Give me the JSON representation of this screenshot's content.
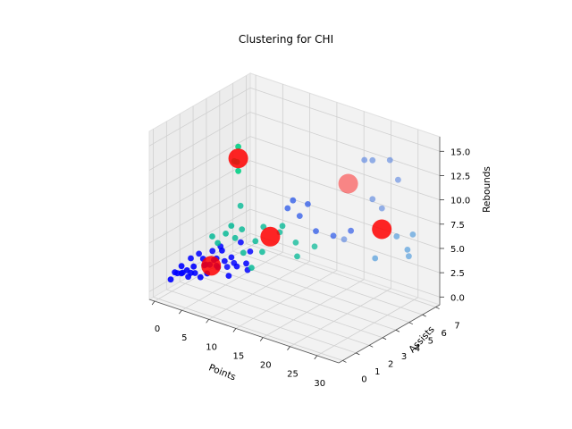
{
  "chart_data": {
    "type": "scatter",
    "projection": "3d",
    "title": "Clustering for CHI",
    "xlabel": "Points",
    "ylabel": "Assists",
    "zlabel": "Rebounds",
    "xlim": [
      -1,
      34
    ],
    "ylim": [
      -0.3,
      7.3
    ],
    "zlim": [
      -0.8,
      16.5
    ],
    "x_ticks": [
      "0",
      "5",
      "10",
      "15",
      "20",
      "25",
      "30"
    ],
    "y_ticks": [
      "0",
      "1",
      "2",
      "3",
      "4",
      "5",
      "6",
      "7"
    ],
    "z_ticks": [
      "0.0",
      "2.5",
      "5.0",
      "7.5",
      "10.0",
      "12.5",
      "15.0"
    ],
    "grid": true,
    "legend": "none",
    "pane_color": "#f2f2f2",
    "grid_color": "#d0d0d0",
    "series": [
      {
        "color": "#0000ff",
        "points": [
          [
            1,
            0.5,
            1
          ],
          [
            1.5,
            0.8,
            1.5
          ],
          [
            2,
            0.4,
            2
          ],
          [
            2,
            1,
            1.5
          ],
          [
            2.5,
            0.7,
            2.5
          ],
          [
            3,
            0.5,
            2
          ],
          [
            3,
            1.2,
            3
          ],
          [
            3.5,
            0.8,
            1.5
          ],
          [
            4,
            0.5,
            2.5
          ],
          [
            4,
            1.4,
            3.5
          ],
          [
            4.5,
            0.9,
            2
          ],
          [
            5,
            0.6,
            3
          ],
          [
            5,
            1.5,
            2.5
          ],
          [
            5.5,
            1.1,
            3.5
          ],
          [
            6,
            0.7,
            2
          ],
          [
            6,
            1.6,
            4
          ],
          [
            6.5,
            1.2,
            3
          ],
          [
            7,
            0.8,
            2.5
          ],
          [
            7,
            1.8,
            4.5
          ],
          [
            7.5,
            1.3,
            3
          ],
          [
            8,
            0.9,
            4
          ],
          [
            8,
            1.9,
            2.5
          ],
          [
            8.5,
            1.5,
            3.5
          ],
          [
            9,
            1.1,
            5
          ],
          [
            9,
            2,
            3
          ],
          [
            9.5,
            1.6,
            4
          ],
          [
            10,
            1.2,
            2.5
          ],
          [
            10.5,
            1.9,
            5.5
          ],
          [
            11,
            1.4,
            3.5
          ],
          [
            11.5,
            2.2,
            4.5
          ],
          [
            12,
            1.8,
            3
          ],
          [
            12.5,
            1.5,
            4
          ],
          [
            6,
            1,
            3
          ],
          [
            7,
            1.5,
            3.5
          ],
          [
            4,
            0.8,
            2
          ],
          [
            8,
            1.2,
            3
          ]
        ]
      },
      {
        "color": "#1f4fe8",
        "points": [
          [
            14,
            4,
            8
          ],
          [
            15,
            4,
            9
          ],
          [
            15,
            4.5,
            7
          ],
          [
            16.5,
            4.5,
            8.5
          ],
          [
            18,
            4.5,
            6
          ],
          [
            20,
            5,
            5.5
          ],
          [
            22,
            5.5,
            6
          ]
        ]
      },
      {
        "color": "#5b86e0",
        "points": [
          [
            21,
            5.4,
            5
          ],
          [
            25,
            5.3,
            14
          ],
          [
            26,
            5.5,
            14
          ],
          [
            26,
            5.5,
            10
          ],
          [
            28,
            6,
            14
          ],
          [
            27,
            5.8,
            9
          ],
          [
            29,
            6.2,
            12
          ]
        ]
      },
      {
        "color": "#3a8fd8",
        "points": [
          [
            25.5,
            5.9,
            3.5
          ],
          [
            28.5,
            6.3,
            6
          ],
          [
            30,
            6.6,
            4
          ],
          [
            31,
            6.5,
            6.5
          ],
          [
            30.5,
            6.3,
            5
          ]
        ]
      },
      {
        "color": "#00b894",
        "points": [
          [
            5,
            2,
            5
          ],
          [
            6,
            2,
            4.5
          ],
          [
            7,
            2.2,
            5.5
          ],
          [
            8,
            2.5,
            5
          ],
          [
            9,
            2.6,
            6
          ],
          [
            10,
            2.3,
            4
          ],
          [
            11,
            2.8,
            5
          ],
          [
            12,
            3,
            6.5
          ],
          [
            13,
            2.5,
            4.5
          ],
          [
            14,
            3.4,
            6
          ],
          [
            15,
            3.2,
            7
          ],
          [
            16,
            3.8,
            5
          ],
          [
            17,
            3.5,
            4
          ],
          [
            18,
            4.4,
            4.5
          ],
          [
            9,
            1.8,
            7
          ],
          [
            12,
            2.1,
            3
          ],
          [
            8,
            2.9,
            8
          ]
        ]
      },
      {
        "color": "#00d084",
        "points": [
          [
            12.5,
            0.9,
            16.5
          ],
          [
            12.5,
            0.8,
            15
          ],
          [
            12.5,
            0.9,
            14
          ],
          [
            12,
            0.8,
            15
          ]
        ]
      },
      {
        "color": "#ff0000",
        "centroid": true,
        "points": [
          [
            12.5,
            0.9,
            15.3
          ],
          [
            13,
            3.1,
            5.6
          ],
          [
            22,
            5.3,
            11
          ],
          [
            26.5,
            6,
            6.6
          ],
          [
            6.5,
            1.3,
            2.8
          ]
        ]
      }
    ]
  }
}
